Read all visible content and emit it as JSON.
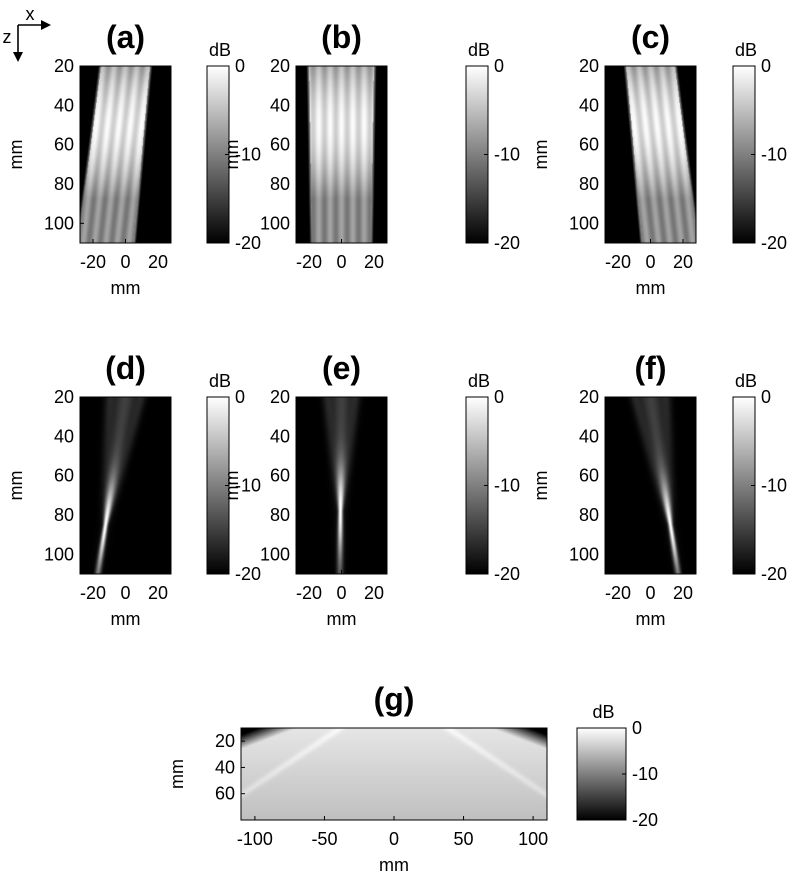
{
  "axes_indicator": {
    "x_label": "x",
    "z_label": "z"
  },
  "colors": {
    "background": "#ffffff",
    "colormap_low": "#000000",
    "colormap_high": "#ffffff",
    "axis": "#000000"
  },
  "chart_data": [
    {
      "type": "heatmap",
      "title": "(a)",
      "xlabel": "mm",
      "ylabel": "mm",
      "xlim": [
        -28,
        28
      ],
      "ylim": [
        20,
        110
      ],
      "y_reversed": true,
      "xticks": [
        "-20",
        "0",
        "20"
      ],
      "xtick_values": [
        -20,
        0,
        20
      ],
      "yticks": [
        "20",
        "40",
        "60",
        "80",
        "100"
      ],
      "ytick_values": [
        20,
        40,
        60,
        80,
        100
      ],
      "colorbar": {
        "label": "dB",
        "range": [
          -20,
          0
        ],
        "ticks": [
          "0",
          "-10",
          "-20"
        ],
        "tick_values": [
          0,
          -10,
          -20
        ]
      },
      "beam": {
        "x_at_top": 0,
        "x_at_bottom": -12,
        "width_top": 30,
        "width_bottom": 34,
        "focus_z": null,
        "style": "wide"
      }
    },
    {
      "type": "heatmap",
      "title": "(b)",
      "xlabel": "",
      "ylabel": "mm",
      "xlim": [
        -28,
        28
      ],
      "ylim": [
        20,
        110
      ],
      "y_reversed": true,
      "xticks": [
        "-20",
        "0",
        "20"
      ],
      "xtick_values": [
        -20,
        0,
        20
      ],
      "yticks": [
        "20",
        "40",
        "60",
        "80",
        "100"
      ],
      "ytick_values": [
        20,
        40,
        60,
        80,
        100
      ],
      "colorbar": {
        "label": "dB",
        "range": [
          -20,
          0
        ],
        "ticks": [
          "0",
          "-10",
          "-20"
        ],
        "tick_values": [
          0,
          -10,
          -20
        ]
      },
      "beam": {
        "x_at_top": 0,
        "x_at_bottom": 0,
        "width_top": 40,
        "width_bottom": 36,
        "focus_z": null,
        "style": "wide"
      }
    },
    {
      "type": "heatmap",
      "title": "(c)",
      "xlabel": "mm",
      "ylabel": "mm",
      "xlim": [
        -28,
        28
      ],
      "ylim": [
        20,
        110
      ],
      "y_reversed": true,
      "xticks": [
        "-20",
        "0",
        "20"
      ],
      "xtick_values": [
        -20,
        0,
        20
      ],
      "yticks": [
        "20",
        "40",
        "60",
        "80",
        "100"
      ],
      "ytick_values": [
        20,
        40,
        60,
        80,
        100
      ],
      "colorbar": {
        "label": "dB",
        "range": [
          -20,
          0
        ],
        "ticks": [
          "0",
          "-10",
          "-20"
        ],
        "tick_values": [
          0,
          -10,
          -20
        ]
      },
      "beam": {
        "x_at_top": 0,
        "x_at_bottom": 12,
        "width_top": 30,
        "width_bottom": 34,
        "focus_z": null,
        "style": "wide"
      }
    },
    {
      "type": "heatmap",
      "title": "(d)",
      "xlabel": "mm",
      "ylabel": "mm",
      "xlim": [
        -28,
        28
      ],
      "ylim": [
        20,
        110
      ],
      "y_reversed": true,
      "xticks": [
        "-20",
        "0",
        "20"
      ],
      "xtick_values": [
        -20,
        0,
        20
      ],
      "yticks": [
        "20",
        "40",
        "60",
        "80",
        "100"
      ],
      "ytick_values": [
        20,
        40,
        60,
        80,
        100
      ],
      "colorbar": {
        "label": "dB",
        "range": [
          -20,
          0
        ],
        "ticks": [
          "0",
          "-10",
          "-20"
        ],
        "tick_values": [
          0,
          -10,
          -20
        ]
      },
      "beam": {
        "x_at_top": 0,
        "x_at_bottom": -17,
        "width_top": 22,
        "width_bottom": 4,
        "focus_z": 85,
        "style": "focused"
      }
    },
    {
      "type": "heatmap",
      "title": "(e)",
      "xlabel": "mm",
      "ylabel": "mm",
      "xlim": [
        -28,
        28
      ],
      "ylim": [
        20,
        110
      ],
      "y_reversed": true,
      "xticks": [
        "-20",
        "0",
        "20"
      ],
      "xtick_values": [
        -20,
        0,
        20
      ],
      "yticks": [
        "20",
        "40",
        "60",
        "80",
        "100"
      ],
      "ytick_values": [
        20,
        40,
        60,
        80,
        100
      ],
      "colorbar": {
        "label": "dB",
        "range": [
          -20,
          0
        ],
        "ticks": [
          "0",
          "-10",
          "-20"
        ],
        "tick_values": [
          0,
          -10,
          -20
        ]
      },
      "beam": {
        "x_at_top": 0,
        "x_at_bottom": -1,
        "width_top": 20,
        "width_bottom": 4,
        "focus_z": 78,
        "style": "focused"
      }
    },
    {
      "type": "heatmap",
      "title": "(f)",
      "xlabel": "mm",
      "ylabel": "mm",
      "xlim": [
        -28,
        28
      ],
      "ylim": [
        20,
        110
      ],
      "y_reversed": true,
      "xticks": [
        "-20",
        "0",
        "20"
      ],
      "xtick_values": [
        -20,
        0,
        20
      ],
      "yticks": [
        "20",
        "40",
        "60",
        "80",
        "100"
      ],
      "ytick_values": [
        20,
        40,
        60,
        80,
        100
      ],
      "colorbar": {
        "label": "dB",
        "range": [
          -20,
          0
        ],
        "ticks": [
          "0",
          "-10",
          "-20"
        ],
        "tick_values": [
          0,
          -10,
          -20
        ]
      },
      "beam": {
        "x_at_top": 0,
        "x_at_bottom": 17,
        "width_top": 22,
        "width_bottom": 4,
        "focus_z": 85,
        "style": "focused"
      }
    },
    {
      "type": "heatmap",
      "title": "(g)",
      "xlabel": "mm",
      "ylabel": "mm",
      "xlim": [
        -110,
        110
      ],
      "ylim": [
        10,
        80
      ],
      "y_reversed": true,
      "xticks": [
        "-100",
        "-50",
        "0",
        "50",
        "100"
      ],
      "xtick_values": [
        -100,
        -50,
        0,
        50,
        100
      ],
      "yticks": [
        "20",
        "40",
        "60"
      ],
      "ytick_values": [
        20,
        40,
        60
      ],
      "colorbar": {
        "label": "dB",
        "range": [
          -20,
          0
        ],
        "ticks": [
          "0",
          "-10",
          "-20"
        ],
        "tick_values": [
          0,
          -10,
          -20
        ]
      },
      "beam": {
        "style": "sector",
        "half_width_top": 70,
        "spread": 2.4
      }
    }
  ]
}
